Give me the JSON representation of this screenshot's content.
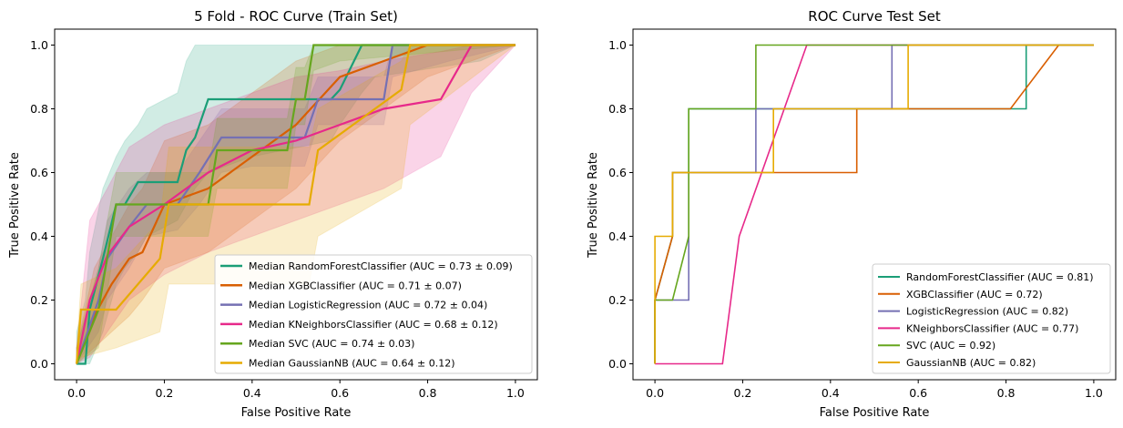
{
  "chart_data": [
    {
      "type": "line",
      "title": "5 Fold - ROC Curve (Train Set)",
      "xlabel": "False Positive Rate",
      "ylabel": "True Positive Rate",
      "xlim": [
        -0.05,
        1.05
      ],
      "ylim": [
        -0.05,
        1.05
      ],
      "xticks": [
        "0.0",
        "0.2",
        "0.4",
        "0.6",
        "0.8",
        "1.0"
      ],
      "yticks": [
        "0.0",
        "0.2",
        "0.4",
        "0.6",
        "0.8",
        "1.0"
      ],
      "grid": false,
      "legend_position": "lower-right",
      "series": [
        {
          "name": "Median RandomForestClassifier (AUC = 0.73 ± 0.09)",
          "color": "#1b9e77",
          "x": [
            0,
            0.02,
            0.03,
            0.06,
            0.09,
            0.11,
            0.14,
            0.16,
            0.23,
            0.25,
            0.27,
            0.3,
            0.4,
            0.58,
            0.6,
            0.65,
            0.68,
            0.92,
            1.0
          ],
          "y": [
            0,
            0,
            0.17,
            0.33,
            0.5,
            0.5,
            0.57,
            0.57,
            0.57,
            0.67,
            0.71,
            0.83,
            0.83,
            0.83,
            0.86,
            1.0,
            1.0,
            1.0,
            1.0
          ],
          "lower": [
            0,
            0,
            0,
            0.1,
            0.25,
            0.3,
            0.35,
            0.4,
            0.45,
            0.5,
            0.55,
            0.6,
            0.65,
            0.7,
            0.75,
            0.85,
            0.9,
            0.95,
            1.0
          ],
          "upper": [
            0.1,
            0.2,
            0.35,
            0.55,
            0.65,
            0.7,
            0.75,
            0.8,
            0.85,
            0.95,
            1.0,
            1.0,
            1.0,
            1.0,
            1.0,
            1.0,
            1.0,
            1.0,
            1.0
          ]
        },
        {
          "name": "Median XGBClassifier (AUC = 0.71 ± 0.07)",
          "color": "#d95f02",
          "x": [
            0,
            0.04,
            0.08,
            0.12,
            0.15,
            0.2,
            0.3,
            0.4,
            0.5,
            0.6,
            0.7,
            0.8,
            0.9,
            1.0
          ],
          "y": [
            0,
            0.15,
            0.25,
            0.33,
            0.35,
            0.5,
            0.55,
            0.65,
            0.75,
            0.9,
            0.95,
            1.0,
            1.0,
            1.0
          ],
          "lower": [
            0,
            0.05,
            0.1,
            0.15,
            0.2,
            0.3,
            0.35,
            0.45,
            0.55,
            0.7,
            0.8,
            0.9,
            0.95,
            1.0
          ],
          "upper": [
            0.05,
            0.3,
            0.4,
            0.5,
            0.55,
            0.7,
            0.75,
            0.85,
            0.95,
            1.0,
            1.0,
            1.0,
            1.0,
            1.0
          ]
        },
        {
          "name": "Median LogisticRegression (AUC = 0.72 ± 0.04)",
          "color": "#7570b3",
          "x": [
            0,
            0.05,
            0.07,
            0.12,
            0.16,
            0.23,
            0.28,
            0.33,
            0.4,
            0.52,
            0.55,
            0.7,
            0.72,
            0.85,
            1.0
          ],
          "y": [
            0,
            0.2,
            0.33,
            0.43,
            0.5,
            0.5,
            0.6,
            0.71,
            0.71,
            0.71,
            0.83,
            0.83,
            1.0,
            1.0,
            1.0
          ],
          "lower": [
            0,
            0.1,
            0.2,
            0.3,
            0.4,
            0.42,
            0.5,
            0.6,
            0.62,
            0.62,
            0.75,
            0.75,
            0.9,
            0.95,
            1.0
          ],
          "upper": [
            0.05,
            0.3,
            0.45,
            0.55,
            0.6,
            0.6,
            0.7,
            0.8,
            0.8,
            0.8,
            0.9,
            0.9,
            1.0,
            1.0,
            1.0
          ]
        },
        {
          "name": "Median KNeighborsClassifier (AUC = 0.68 ± 0.12)",
          "color": "#e7298a",
          "x": [
            0,
            0.03,
            0.07,
            0.12,
            0.2,
            0.3,
            0.4,
            0.5,
            0.6,
            0.7,
            0.83,
            0.9,
            1.0
          ],
          "y": [
            0,
            0.2,
            0.34,
            0.43,
            0.5,
            0.6,
            0.67,
            0.7,
            0.75,
            0.8,
            0.83,
            1.0,
            1.0
          ],
          "lower": [
            0,
            0.02,
            0.1,
            0.2,
            0.28,
            0.35,
            0.4,
            0.45,
            0.5,
            0.55,
            0.65,
            0.85,
            1.0
          ],
          "upper": [
            0.05,
            0.45,
            0.55,
            0.68,
            0.75,
            0.8,
            0.85,
            0.9,
            0.92,
            0.95,
            0.98,
            1.0,
            1.0
          ]
        },
        {
          "name": "Median SVC (AUC = 0.74 ± 0.03)",
          "color": "#66a61e",
          "x": [
            0,
            0.05,
            0.09,
            0.3,
            0.32,
            0.48,
            0.5,
            0.52,
            0.54,
            0.6,
            1.0
          ],
          "y": [
            0,
            0.17,
            0.5,
            0.5,
            0.67,
            0.67,
            0.83,
            0.83,
            1.0,
            1.0,
            1.0
          ],
          "lower": [
            0,
            0.05,
            0.4,
            0.4,
            0.55,
            0.55,
            0.75,
            0.75,
            0.92,
            0.95,
            1.0
          ],
          "upper": [
            0.05,
            0.3,
            0.6,
            0.6,
            0.77,
            0.77,
            0.93,
            0.93,
            1.0,
            1.0,
            1.0
          ]
        },
        {
          "name": "Median GaussianNB (AUC = 0.64 ± 0.12)",
          "color": "#e6ab02",
          "x": [
            0,
            0.01,
            0.09,
            0.19,
            0.21,
            0.53,
            0.55,
            0.74,
            0.76,
            1.0
          ],
          "y": [
            0,
            0.17,
            0.17,
            0.33,
            0.5,
            0.5,
            0.67,
            0.86,
            1.0,
            1.0
          ],
          "lower": [
            0,
            0.02,
            0.05,
            0.1,
            0.25,
            0.25,
            0.4,
            0.55,
            0.75,
            1.0
          ],
          "upper": [
            0.05,
            0.25,
            0.3,
            0.45,
            0.68,
            0.68,
            0.8,
            0.95,
            1.0,
            1.0
          ]
        }
      ]
    },
    {
      "type": "line",
      "title": "ROC Curve Test Set",
      "xlabel": "False Positive Rate",
      "ylabel": "True Positive Rate",
      "xlim": [
        -0.05,
        1.05
      ],
      "ylim": [
        -0.05,
        1.05
      ],
      "xticks": [
        "0.0",
        "0.2",
        "0.4",
        "0.6",
        "0.8",
        "1.0"
      ],
      "yticks": [
        "0.0",
        "0.2",
        "0.4",
        "0.6",
        "0.8",
        "1.0"
      ],
      "grid": false,
      "legend_position": "lower-right",
      "series": [
        {
          "name": "RandomForestClassifier (AUC = 0.81)",
          "color": "#1b9e77",
          "x": [
            0,
            0,
            0.04,
            0.04,
            0.077,
            0.077,
            0.23,
            0.23,
            0.846,
            0.846,
            1.0
          ],
          "y": [
            0,
            0.2,
            0.4,
            0.6,
            0.6,
            0.8,
            0.8,
            0.8,
            0.8,
            1.0,
            1.0
          ]
        },
        {
          "name": "XGBClassifier (AUC = 0.72)",
          "color": "#d95f02",
          "x": [
            0,
            0,
            0.04,
            0.04,
            0.46,
            0.46,
            0.81,
            0.92,
            1.0
          ],
          "y": [
            0,
            0.2,
            0.4,
            0.6,
            0.6,
            0.8,
            0.8,
            1.0,
            1.0
          ]
        },
        {
          "name": "LogisticRegression (AUC = 0.82)",
          "color": "#7570b3",
          "x": [
            0,
            0,
            0.077,
            0.077,
            0.23,
            0.23,
            0.27,
            0.27,
            0.54,
            0.54,
            1.0
          ],
          "y": [
            0,
            0.2,
            0.2,
            0.6,
            0.6,
            0.8,
            0.8,
            0.8,
            0.8,
            1.0,
            1.0
          ]
        },
        {
          "name": "KNeighborsClassifier (AUC = 0.77)",
          "color": "#e7298a",
          "x": [
            0,
            0.154,
            0.192,
            0.346,
            1.0
          ],
          "y": [
            0,
            0,
            0.4,
            1.0,
            1.0
          ]
        },
        {
          "name": "SVC (AUC = 0.92)",
          "color": "#66a61e",
          "x": [
            0,
            0,
            0.04,
            0.077,
            0.077,
            0.23,
            0.23,
            1.0
          ],
          "y": [
            0,
            0.2,
            0.2,
            0.4,
            0.8,
            0.8,
            1.0,
            1.0
          ]
        },
        {
          "name": "GaussianNB (AUC = 0.82)",
          "color": "#e6ab02",
          "x": [
            0,
            0,
            0.04,
            0.04,
            0.27,
            0.27,
            0.577,
            0.577,
            1.0
          ],
          "y": [
            0,
            0.4,
            0.4,
            0.6,
            0.6,
            0.8,
            0.8,
            1.0,
            1.0
          ]
        }
      ]
    }
  ]
}
